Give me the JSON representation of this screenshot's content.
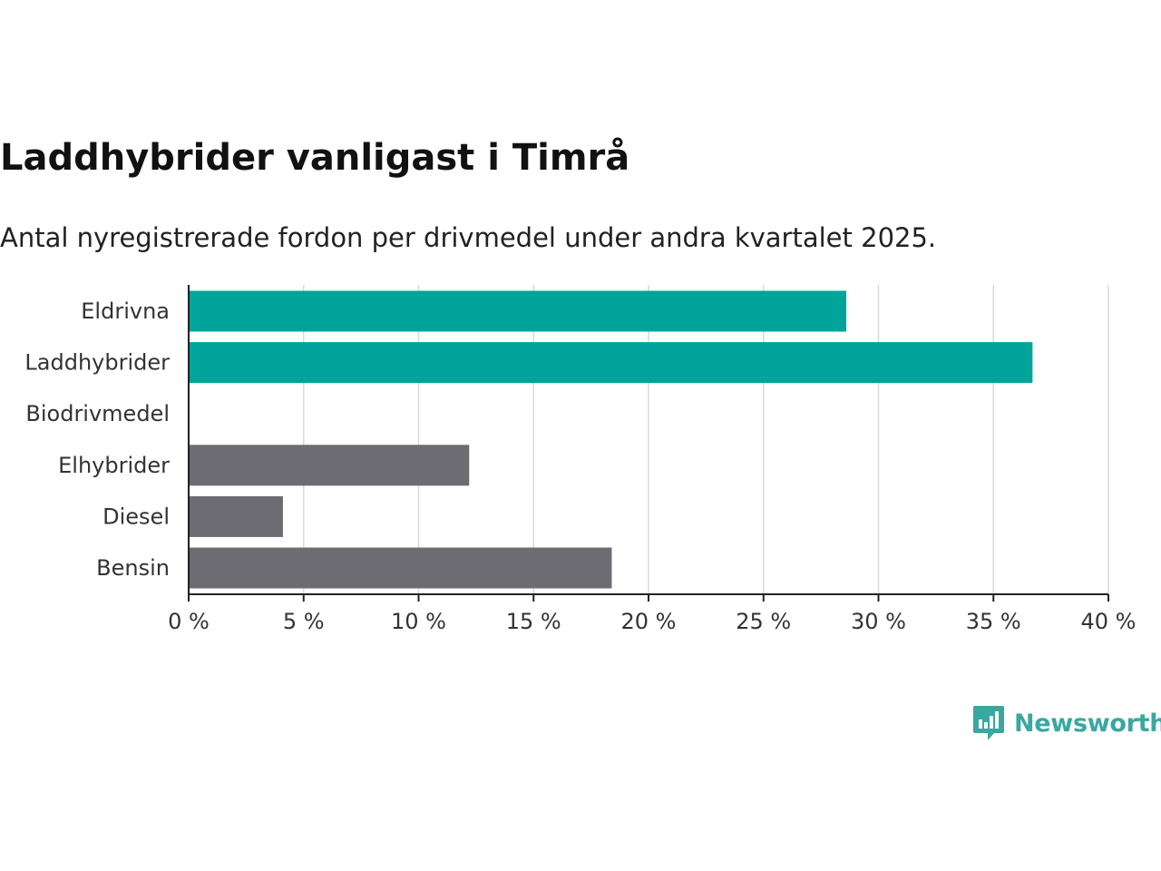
{
  "header": {
    "title": "Laddhybrider vanligast i Timrå",
    "subtitle": "Antal nyregistrerade fordon per drivmedel under andra kvartalet 2025."
  },
  "brand": {
    "name": "Newsworthy",
    "color": "#3aa7a0",
    "icon": "newsworthy-logo-icon"
  },
  "chart_data": {
    "type": "bar",
    "orientation": "horizontal",
    "categories": [
      "Eldrivna",
      "Laddhybrider",
      "Biodrivmedel",
      "Elhybrider",
      "Diesel",
      "Bensin"
    ],
    "values": [
      28.6,
      36.7,
      0,
      12.2,
      4.1,
      18.4
    ],
    "colors": [
      "#00a49a",
      "#00a49a",
      "#00a49a",
      "#6d6c72",
      "#6d6c72",
      "#6d6c72"
    ],
    "xlim": [
      0,
      40
    ],
    "ticks": [
      0,
      5,
      10,
      15,
      20,
      25,
      30,
      35,
      40
    ],
    "tick_labels": [
      "0 %",
      "5 %",
      "10 %",
      "15 %",
      "20 %",
      "25 %",
      "30 %",
      "35 %",
      "40 %"
    ],
    "grid": true
  }
}
